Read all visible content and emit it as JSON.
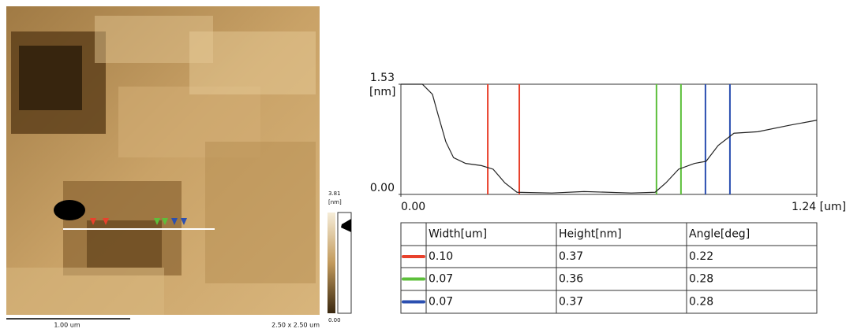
{
  "chart_data": {
    "type": "line",
    "x": [
      0,
      0.064,
      0.094,
      0.11,
      0.134,
      0.157,
      0.193,
      0.24,
      0.275,
      0.31,
      0.346,
      0.45,
      0.546,
      0.687,
      0.758,
      0.79,
      0.828,
      0.875,
      0.91,
      0.946,
      0.993,
      1.064,
      1.158,
      1.24
    ],
    "series": [
      {
        "color": "#222222",
        "values": [
          1.53,
          1.53,
          1.39,
          1.12,
          0.73,
          0.51,
          0.43,
          0.4,
          0.35,
          0.16,
          0.03,
          0.02,
          0.04,
          0.02,
          0.03,
          0.16,
          0.35,
          0.43,
          0.46,
          0.68,
          0.85,
          0.87,
          0.96,
          1.03
        ]
      }
    ],
    "xlim": [
      0,
      1.24
    ],
    "ylim": [
      0,
      1.53
    ],
    "xticks": [
      {
        "value": 0,
        "label": "0.00"
      },
      {
        "value": 1.24,
        "label": "1.24 [um]"
      }
    ],
    "yticks": [
      {
        "value": 0,
        "label": "0.00"
      },
      {
        "value": 1.53,
        "label": "1.53"
      }
    ],
    "y_label": "[nm]",
    "cursors": [
      {
        "color": "#e8412c",
        "x": 0.259
      },
      {
        "color": "#e8412c",
        "x": 0.353
      },
      {
        "color": "#5cbf3a",
        "x": 0.762
      },
      {
        "color": "#5cbf3a",
        "x": 0.835
      },
      {
        "color": "#2b4fb0",
        "x": 0.908
      },
      {
        "color": "#2b4fb0",
        "x": 0.981
      }
    ]
  },
  "image": {
    "scale_bar": "1.00 um",
    "size": "2.50 x 2.50 um",
    "colorbar_max": "3.81",
    "colorbar_unit": "[nm]",
    "colorbar_min": "0.00"
  },
  "table": {
    "header": [
      "Width[um]",
      "Height[nm]",
      "Angle[deg]"
    ],
    "rows": [
      {
        "color": "#e8412c",
        "cells": [
          "0.10",
          "0.37",
          "0.22"
        ]
      },
      {
        "color": "#5cbf3a",
        "cells": [
          "0.07",
          "0.36",
          "0.28"
        ]
      },
      {
        "color": "#2b4fb0",
        "cells": [
          "0.07",
          "0.37",
          "0.28"
        ]
      }
    ]
  }
}
